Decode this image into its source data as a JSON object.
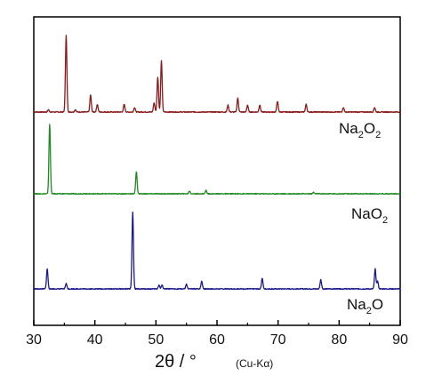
{
  "chart_data": {
    "type": "line",
    "xlim": [
      30,
      90
    ],
    "x_ticks": [
      30,
      40,
      50,
      60,
      70,
      80,
      90
    ],
    "x_tick_labels": [
      "30",
      "40",
      "50",
      "60",
      "70",
      "80",
      "90"
    ],
    "xlabel_main": "2θ / °",
    "xlabel_unit": "(Cu-Kα)",
    "y_ticks_shown": false,
    "grid": false,
    "legend": "none",
    "series": [
      {
        "name": "Na2O2",
        "label_base": "Na",
        "label_sub1": "2",
        "label_mid": "O",
        "label_sub2": "2",
        "color": "#8b1a1a",
        "peaks": [
          [
            32.4,
            0.03
          ],
          [
            35.3,
            1.0
          ],
          [
            36.8,
            0.03
          ],
          [
            39.3,
            0.22
          ],
          [
            40.4,
            0.1
          ],
          [
            44.8,
            0.1
          ],
          [
            46.5,
            0.06
          ],
          [
            49.7,
            0.12
          ],
          [
            50.3,
            0.46
          ],
          [
            50.9,
            0.67
          ],
          [
            61.8,
            0.09
          ],
          [
            63.4,
            0.18
          ],
          [
            65.0,
            0.09
          ],
          [
            67.0,
            0.09
          ],
          [
            69.9,
            0.14
          ],
          [
            74.6,
            0.1
          ],
          [
            80.7,
            0.06
          ],
          [
            85.8,
            0.06
          ]
        ]
      },
      {
        "name": "NaO2",
        "label_base": "NaO",
        "label_sub1": "2",
        "label_mid": "",
        "label_sub2": "",
        "color": "#1f8a1f",
        "peaks": [
          [
            32.6,
            1.0
          ],
          [
            46.8,
            0.32
          ],
          [
            55.5,
            0.04
          ],
          [
            58.2,
            0.05
          ],
          [
            75.8,
            0.02
          ]
        ]
      },
      {
        "name": "Na2O",
        "label_base": "Na",
        "label_sub1": "2",
        "label_mid": "O",
        "label_sub2": "",
        "color": "#1a1a8b",
        "peaks": [
          [
            32.2,
            0.26
          ],
          [
            35.3,
            0.07
          ],
          [
            46.2,
            1.0
          ],
          [
            50.5,
            0.05
          ],
          [
            51.0,
            0.05
          ],
          [
            55.0,
            0.06
          ],
          [
            57.5,
            0.1
          ],
          [
            67.4,
            0.14
          ],
          [
            77.0,
            0.12
          ],
          [
            85.9,
            0.26
          ],
          [
            86.3,
            0.1
          ]
        ]
      }
    ]
  }
}
